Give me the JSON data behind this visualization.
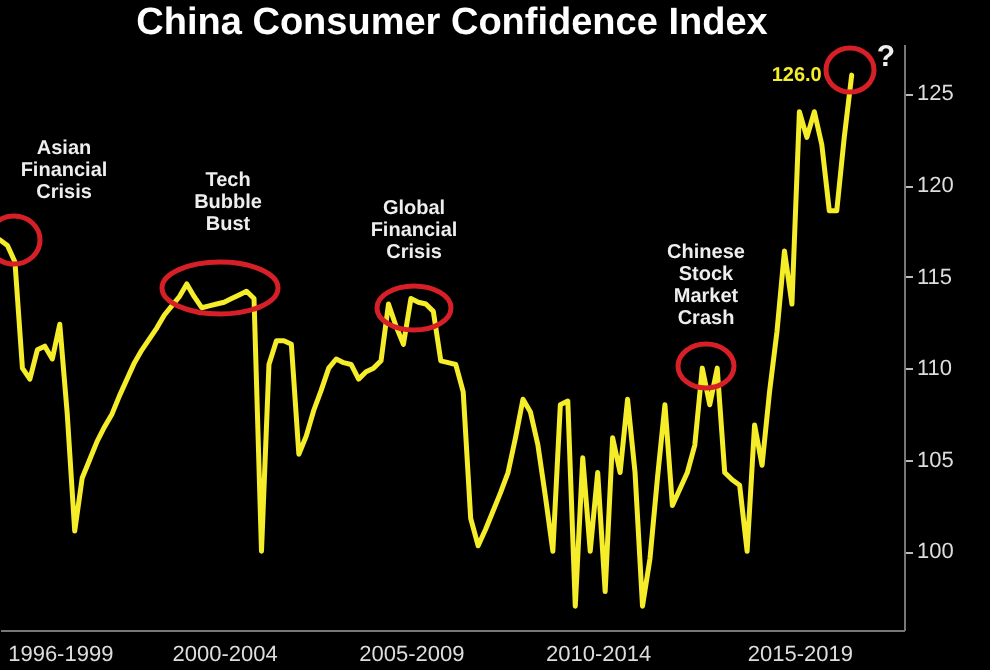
{
  "chart_data": {
    "type": "line",
    "title": "China Consumer Confidence Index",
    "categories": [
      null,
      null,
      null,
      null,
      null,
      null,
      null,
      null,
      "1996-1999",
      null,
      null,
      null,
      null,
      null,
      null,
      null,
      null,
      null,
      null,
      null,
      null,
      null,
      null,
      null,
      null,
      null,
      null,
      null,
      null,
      null,
      "2000-2004",
      null,
      null,
      null,
      null,
      null,
      null,
      null,
      null,
      null,
      null,
      null,
      null,
      null,
      null,
      null,
      null,
      null,
      null,
      null,
      null,
      null,
      null,
      null,
      null,
      "2005-2009",
      null,
      null,
      null,
      null,
      null,
      null,
      null,
      null,
      null,
      null,
      null,
      null,
      null,
      null,
      null,
      null,
      null,
      null,
      null,
      null,
      null,
      null,
      null,
      null,
      "2010-2014",
      null,
      null,
      null,
      null,
      null,
      null,
      null,
      null,
      null,
      null,
      null,
      null,
      null,
      null,
      null,
      null,
      null,
      null,
      null,
      null,
      null,
      null,
      null,
      null,
      null,
      null,
      "2015-2019",
      null,
      null,
      null,
      null,
      null,
      null,
      null,
      null,
      null,
      null,
      null,
      null,
      null,
      null
    ],
    "series": [
      {
        "color": "#f5ec2a",
        "values": [
          117.0,
          116.7,
          115.8,
          110.0,
          109.4,
          111.0,
          111.2,
          110.5,
          112.4,
          107.5,
          101.1,
          104.0,
          105.0,
          106.0,
          106.8,
          107.5,
          108.5,
          109.4,
          110.3,
          111.0,
          111.6,
          112.2,
          112.9,
          113.4,
          113.9,
          114.6,
          113.9,
          113.3,
          113.4,
          113.5,
          113.6,
          113.8,
          114.0,
          114.2,
          113.8,
          100.0,
          110.2,
          111.5,
          111.5,
          111.3,
          105.3,
          106.3,
          107.7,
          108.8,
          110.0,
          110.5,
          110.3,
          110.2,
          109.4,
          109.8,
          110.0,
          110.4,
          113.5,
          112.3,
          111.3,
          113.8,
          113.6,
          113.5,
          113.1,
          110.4,
          110.3,
          110.2,
          108.7,
          101.8,
          100.3,
          101.2,
          102.2,
          103.2,
          104.3,
          106.2,
          108.3,
          107.6,
          105.8,
          103.0,
          100.0,
          108.0,
          108.2,
          97.0,
          105.1,
          100.0,
          104.3,
          97.8,
          106.2,
          104.3,
          108.3,
          104.3,
          97.0,
          99.6,
          104.0,
          108.0,
          102.5,
          103.4,
          104.3,
          105.8,
          110.0,
          108.0,
          110.0,
          104.3,
          103.9,
          103.6,
          100.0,
          106.9,
          104.7,
          108.7,
          112.0,
          116.4,
          113.5,
          124.0,
          122.6,
          124.0,
          122.2,
          118.6,
          118.6,
          122.6,
          126.0,
          null,
          null,
          null,
          null,
          null,
          null,
          null
        ],
        "value_labels": [
          null,
          null,
          null,
          null,
          null,
          null,
          null,
          null,
          null,
          null,
          null,
          null,
          null,
          null,
          null,
          null,
          null,
          null,
          null,
          null,
          null,
          null,
          null,
          null,
          null,
          null,
          null,
          null,
          null,
          null,
          null,
          null,
          null,
          null,
          null,
          null,
          null,
          null,
          null,
          null,
          null,
          null,
          null,
          null,
          null,
          null,
          null,
          null,
          null,
          null,
          null,
          null,
          null,
          null,
          null,
          null,
          null,
          null,
          null,
          null,
          null,
          null,
          null,
          null,
          null,
          null,
          null,
          null,
          null,
          null,
          null,
          null,
          null,
          null,
          null,
          null,
          null,
          null,
          null,
          null,
          null,
          null,
          null,
          null,
          null,
          null,
          null,
          null,
          null,
          null,
          null,
          null,
          null,
          null,
          null,
          null,
          null,
          null,
          null,
          null,
          null,
          null,
          null,
          null,
          null,
          null,
          null,
          null,
          null,
          null,
          null,
          null,
          null,
          null,
          "126.0",
          null,
          null,
          null,
          null,
          null,
          null,
          null
        ]
      }
    ],
    "ylim": [
      95.7,
      127.7
    ],
    "yticks": [
      100,
      105,
      110,
      115,
      120,
      125
    ],
    "annotations": [
      "Asian Financial Crisis",
      "Tech Bubble Bust",
      "Global Financial Crisis",
      "Chinese Stock Market Crash",
      "?"
    ]
  }
}
